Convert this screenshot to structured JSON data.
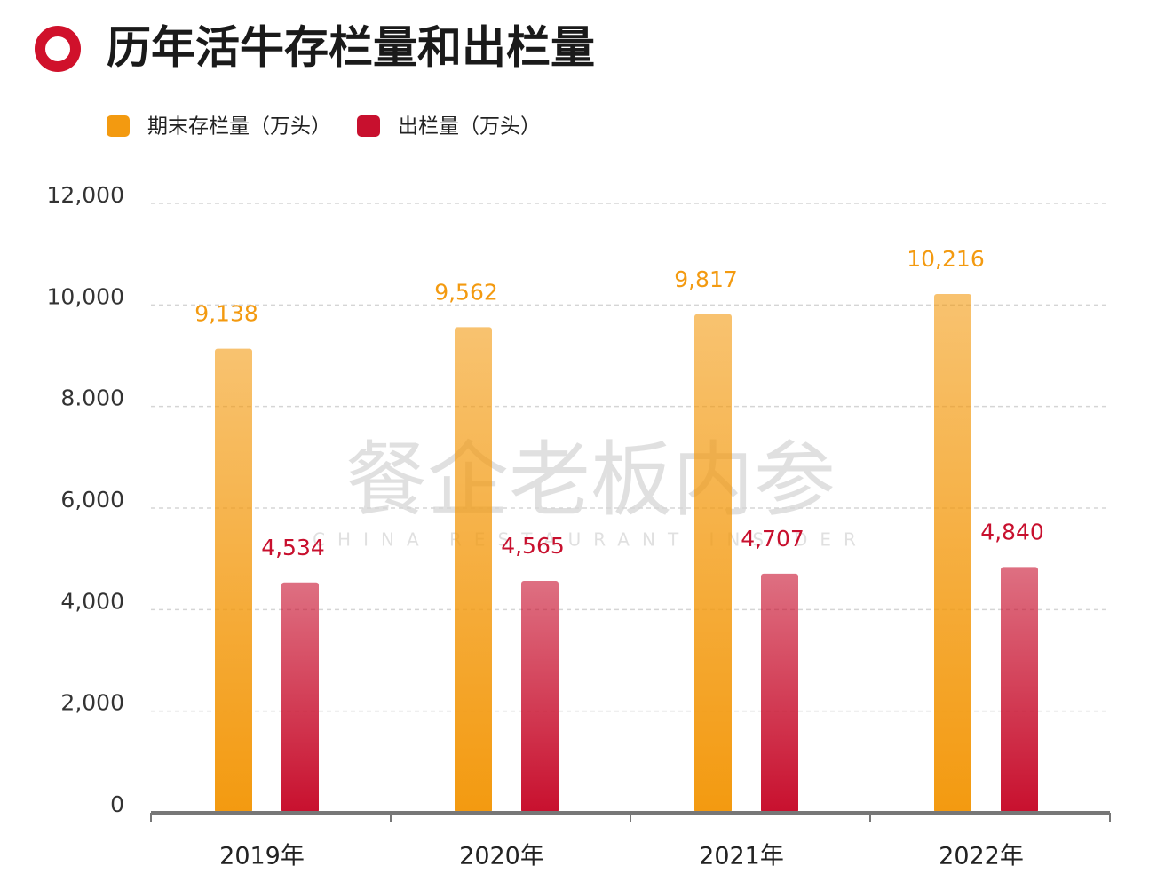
{
  "chart_data": {
    "type": "bar",
    "title": "历年活牛存栏量和出栏量",
    "categories": [
      "2019年",
      "2020年",
      "2021年",
      "2022年"
    ],
    "series": [
      {
        "name": "期末存栏量（万头）",
        "color": "#f39a10",
        "values": [
          9138,
          9562,
          9817,
          10216
        ],
        "value_labels": [
          "9,138",
          "9,562",
          "9,817",
          "10,216"
        ]
      },
      {
        "name": "出栏量（万头）",
        "color": "#c8102e",
        "values": [
          4534,
          4565,
          4707,
          4840
        ],
        "value_labels": [
          "4,534",
          "4,565",
          "4,707",
          "4,840"
        ]
      }
    ],
    "ylim": [
      0,
      12000
    ],
    "yticks": [
      0,
      {
        "value": 2000,
        "label": "2,000"
      },
      {
        "value": 4000,
        "label": "4,000"
      },
      {
        "value": 6000,
        "label": "6,000"
      },
      {
        "value": 8000,
        "label": "8.000"
      },
      {
        "value": 10000,
        "label": "10,000"
      },
      {
        "value": 12000,
        "label": "12,000"
      }
    ],
    "grid": true,
    "watermark": [
      "餐企老板内参",
      "CHINA RESTAURANT INSIDER"
    ]
  }
}
